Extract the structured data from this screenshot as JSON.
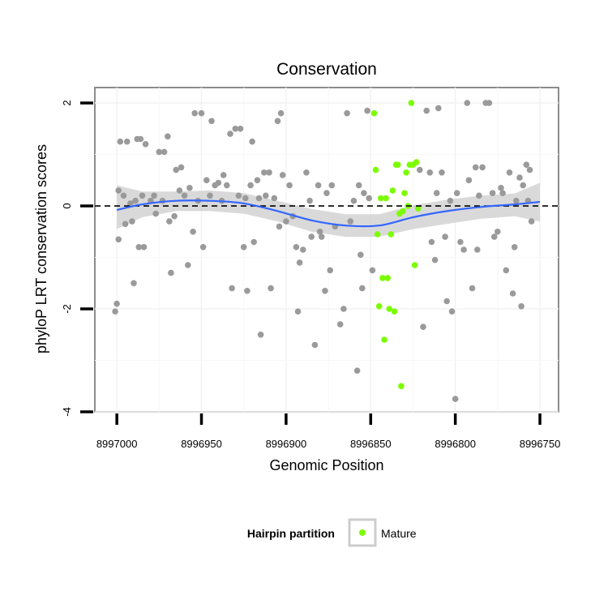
{
  "chart_data": {
    "type": "scatter",
    "title": "Conservation",
    "xlabel": "Genomic Position",
    "ylabel": "phyloP LRT conservation scores",
    "x_reversed": true,
    "xlim": [
      8997013,
      8996739
    ],
    "ylim": [
      -4,
      2.3
    ],
    "xticks": [
      8997000,
      8996950,
      8996900,
      8996850,
      8996800,
      8996750
    ],
    "xtick_labels": [
      "8997000",
      "8996950",
      "8996900",
      "8996850",
      "8996800",
      "8996750"
    ],
    "yticks": [
      -4,
      -2,
      0,
      2
    ],
    "ytick_labels": [
      "-4",
      "-2",
      "0",
      "2"
    ],
    "reference_line": {
      "y": 0,
      "style": "dashed",
      "color": "#000000"
    },
    "colors": {
      "other": "#9a9a9a",
      "mature": "#7cfc00",
      "smooth": "#3366ff",
      "band": "#cccccc"
    },
    "legend": {
      "title": "Hairpin partition",
      "entries": [
        {
          "label": "Mature",
          "color": "#7cfc00"
        }
      ],
      "position": "bottom"
    },
    "series": [
      {
        "name": "Other",
        "color": "#9a9a9a",
        "points": [
          [
            8996999,
            0.3
          ],
          [
            8996998,
            1.25
          ],
          [
            8996996,
            0.2
          ],
          [
            8996995,
            -0.35
          ],
          [
            8996994,
            1.25
          ],
          [
            8996992,
            0.05
          ],
          [
            8996991,
            -0.3
          ],
          [
            8996990,
            -1.5
          ],
          [
            8996989,
            0.1
          ],
          [
            8996988,
            1.3
          ],
          [
            8996986,
            1.3
          ],
          [
            8996985,
            0.2
          ],
          [
            8996984,
            -0.8
          ],
          [
            8996983,
            1.2
          ],
          [
            8996980,
            0.1
          ],
          [
            8996978,
            0.2
          ],
          [
            8996975,
            1.05
          ],
          [
            8996973,
            0.1
          ],
          [
            8996972,
            1.05
          ],
          [
            8996970,
            1.35
          ],
          [
            8996969,
            -0.3
          ],
          [
            8996968,
            -1.3
          ],
          [
            8996966,
            -0.2
          ],
          [
            8996965,
            0.7
          ],
          [
            8996963,
            0.3
          ],
          [
            8996962,
            0.75
          ],
          [
            8996960,
            0.2
          ],
          [
            8996958,
            -1.15
          ],
          [
            8996957,
            0.35
          ],
          [
            8996955,
            -0.5
          ],
          [
            8996954,
            1.8
          ],
          [
            8996952,
            0.1
          ],
          [
            8996950,
            1.8
          ],
          [
            8996949,
            -0.8
          ],
          [
            8996947,
            0.5
          ],
          [
            8996945,
            0.2
          ],
          [
            8996944,
            1.65
          ],
          [
            8996942,
            0.4
          ],
          [
            8996940,
            0.45
          ],
          [
            8996938,
            0.1
          ],
          [
            8996937,
            0.6
          ],
          [
            8996935,
            0.4
          ],
          [
            8996933,
            1.4
          ],
          [
            8996932,
            -1.6
          ],
          [
            8996930,
            1.5
          ],
          [
            8996928,
            0.2
          ],
          [
            8996927,
            1.5
          ],
          [
            8996925,
            -0.8
          ],
          [
            8996924,
            0.15
          ],
          [
            8996923,
            -1.65
          ],
          [
            8996921,
            0.4
          ],
          [
            8996920,
            1.25
          ],
          [
            8996919,
            -0.7
          ],
          [
            8996917,
            0.5
          ],
          [
            8996916,
            0.15
          ],
          [
            8996915,
            -2.5
          ],
          [
            8996913,
            0.65
          ],
          [
            8996912,
            0.2
          ],
          [
            8996910,
            0.65
          ],
          [
            8996909,
            -1.6
          ],
          [
            8996907,
            0.15
          ],
          [
            8996905,
            1.65
          ],
          [
            8996904,
            -0.4
          ],
          [
            8996903,
            1.8
          ],
          [
            8996902,
            0.6
          ],
          [
            8996900,
            -0.3
          ],
          [
            8996898,
            0.4
          ],
          [
            8996896,
            -0.2
          ],
          [
            8996894,
            -0.8
          ],
          [
            8996893,
            -2.05
          ],
          [
            8996892,
            -1.1
          ],
          [
            8996890,
            -0.85
          ],
          [
            8996888,
            0.65
          ],
          [
            8996886,
            0.1
          ],
          [
            8996885,
            -0.6
          ],
          [
            8996883,
            -2.7
          ],
          [
            8996881,
            0.4
          ],
          [
            8996880,
            -0.5
          ],
          [
            8996879,
            -0.6
          ],
          [
            8996877,
            -1.65
          ],
          [
            8996876,
            0.25
          ],
          [
            8996874,
            -1.25
          ],
          [
            8996873,
            0.4
          ],
          [
            8996871,
            -0.4
          ],
          [
            8996868,
            -2.3
          ],
          [
            8996866,
            -2.0
          ],
          [
            8996864,
            1.8
          ],
          [
            8996862,
            -0.3
          ],
          [
            8996860,
            0.1
          ],
          [
            8996858,
            -3.2
          ],
          [
            8996857,
            0.4
          ],
          [
            8996856,
            -0.95
          ],
          [
            8996855,
            -1.6
          ],
          [
            8996854,
            0.25
          ],
          [
            8996852,
            1.85
          ],
          [
            8996851,
            0.15
          ],
          [
            8996849,
            -1.25
          ],
          [
            8996821,
            0.7
          ],
          [
            8996819,
            -2.35
          ],
          [
            8996817,
            1.85
          ],
          [
            8996815,
            0.65
          ],
          [
            8996814,
            -0.7
          ],
          [
            8996812,
            -1.05
          ],
          [
            8996811,
            0.25
          ],
          [
            8996810,
            1.9
          ],
          [
            8996808,
            0.65
          ],
          [
            8996806,
            -0.6
          ],
          [
            8996805,
            -1.85
          ],
          [
            8996803,
            0.1
          ],
          [
            8996802,
            -2.05
          ],
          [
            8996800,
            -3.75
          ],
          [
            8996799,
            0.25
          ],
          [
            8996797,
            -0.7
          ],
          [
            8996795,
            -0.85
          ],
          [
            8996793,
            2.0
          ],
          [
            8996792,
            0.5
          ],
          [
            8996790,
            -1.6
          ],
          [
            8996788,
            0.75
          ],
          [
            8996787,
            -0.85
          ],
          [
            8996786,
            0.2
          ],
          [
            8996784,
            0.75
          ],
          [
            8996782,
            2.0
          ],
          [
            8996780,
            2.0
          ],
          [
            8996778,
            0.25
          ],
          [
            8996777,
            -0.6
          ],
          [
            8996775,
            -0.5
          ],
          [
            8996773,
            0.35
          ],
          [
            8996772,
            0.25
          ],
          [
            8996770,
            -1.25
          ],
          [
            8996768,
            0.65
          ],
          [
            8996766,
            -1.7
          ],
          [
            8996765,
            -0.8
          ],
          [
            8996764,
            0.1
          ],
          [
            8996762,
            0.55
          ],
          [
            8996761,
            -1.95
          ],
          [
            8996760,
            0.4
          ],
          [
            8996758,
            0.8
          ],
          [
            8996757,
            0.1
          ],
          [
            8996756,
            0.7
          ],
          [
            8996755,
            -0.3
          ],
          [
            8997001,
            -2.05
          ],
          [
            8997000,
            -1.9
          ],
          [
            8996999,
            -0.65
          ],
          [
            8996987,
            -0.8
          ],
          [
            8996977,
            -0.15
          ]
        ]
      },
      {
        "name": "Mature",
        "color": "#7cfc00",
        "points": [
          [
            8996848,
            1.8
          ],
          [
            8996847,
            0.7
          ],
          [
            8996846,
            -0.55
          ],
          [
            8996845,
            -1.95
          ],
          [
            8996844,
            0.15
          ],
          [
            8996843,
            -1.4
          ],
          [
            8996842,
            -2.6
          ],
          [
            8996841,
            0.15
          ],
          [
            8996840,
            -1.4
          ],
          [
            8996839,
            -2.0
          ],
          [
            8996838,
            -0.55
          ],
          [
            8996837,
            0.3
          ],
          [
            8996836,
            -2.05
          ],
          [
            8996835,
            0.8
          ],
          [
            8996834,
            0.8
          ],
          [
            8996833,
            -0.15
          ],
          [
            8996832,
            -3.5
          ],
          [
            8996831,
            -0.1
          ],
          [
            8996830,
            0.25
          ],
          [
            8996829,
            0.65
          ],
          [
            8996828,
            0.0
          ],
          [
            8996827,
            0.8
          ],
          [
            8996826,
            2.0
          ],
          [
            8996825,
            0.8
          ],
          [
            8996824,
            -1.15
          ],
          [
            8996823,
            0.85
          ],
          [
            8996822,
            -0.05
          ]
        ]
      }
    ],
    "smooth": {
      "name": "loess",
      "color": "#3366ff",
      "points": [
        [
          8997000,
          -0.08,
          -0.45,
          0.4
        ],
        [
          8996985,
          0.03,
          -0.22,
          0.28
        ],
        [
          8996965,
          0.1,
          -0.1,
          0.28
        ],
        [
          8996945,
          0.1,
          -0.1,
          0.3
        ],
        [
          8996925,
          0.05,
          -0.15,
          0.25
        ],
        [
          8996905,
          -0.1,
          -0.3,
          0.1
        ],
        [
          8996885,
          -0.28,
          -0.5,
          -0.06
        ],
        [
          8996865,
          -0.38,
          -0.6,
          -0.16
        ],
        [
          8996845,
          -0.38,
          -0.6,
          -0.16
        ],
        [
          8996825,
          -0.22,
          -0.45,
          0.01
        ],
        [
          8996805,
          -0.1,
          -0.35,
          0.12
        ],
        [
          8996785,
          -0.02,
          -0.25,
          0.2
        ],
        [
          8996765,
          0.03,
          -0.2,
          0.24
        ],
        [
          8996750,
          0.08,
          -0.3,
          0.45
        ]
      ]
    }
  }
}
